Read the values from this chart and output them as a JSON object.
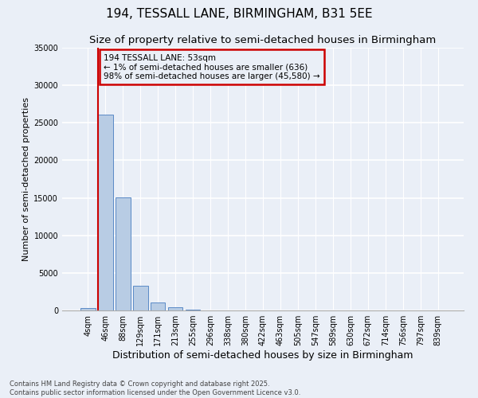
{
  "title1": "194, TESSALL LANE, BIRMINGHAM, B31 5EE",
  "title2": "Size of property relative to semi-detached houses in Birmingham",
  "xlabel": "Distribution of semi-detached houses by size in Birmingham",
  "ylabel": "Number of semi-detached properties",
  "categories": [
    "4sqm",
    "46sqm",
    "88sqm",
    "129sqm",
    "171sqm",
    "213sqm",
    "255sqm",
    "296sqm",
    "338sqm",
    "380sqm",
    "422sqm",
    "463sqm",
    "505sqm",
    "547sqm",
    "589sqm",
    "630sqm",
    "672sqm",
    "714sqm",
    "756sqm",
    "797sqm",
    "839sqm"
  ],
  "values": [
    350,
    26100,
    15100,
    3300,
    1050,
    400,
    130,
    50,
    15,
    5,
    3,
    2,
    1,
    1,
    0,
    0,
    0,
    0,
    0,
    0,
    0
  ],
  "bar_color": "#b8cce4",
  "bar_edge_color": "#5a8ac6",
  "vline_color": "#cc0000",
  "annotation_title": "194 TESSALL LANE: 53sqm",
  "annotation_line1": "← 1% of semi-detached houses are smaller (636)",
  "annotation_line2": "98% of semi-detached houses are larger (45,580) →",
  "annotation_box_color": "#cc0000",
  "ylim": [
    0,
    35000
  ],
  "yticks": [
    0,
    5000,
    10000,
    15000,
    20000,
    25000,
    30000,
    35000
  ],
  "footer": "Contains HM Land Registry data © Crown copyright and database right 2025.\nContains public sector information licensed under the Open Government Licence v3.0.",
  "bg_color": "#eaeff7",
  "grid_color": "#ffffff",
  "title1_fontsize": 11,
  "title2_fontsize": 9.5,
  "tick_fontsize": 7,
  "ylabel_fontsize": 8,
  "xlabel_fontsize": 9
}
